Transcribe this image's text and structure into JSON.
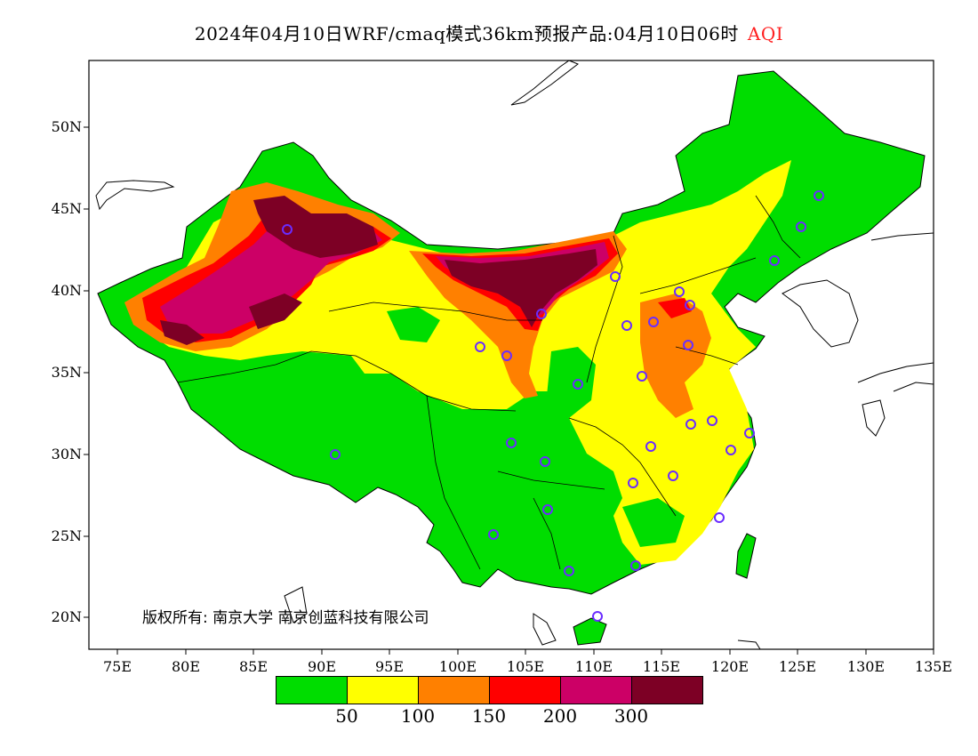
{
  "title": {
    "main": "2024年04月10日WRF/cmaq模式36km预报产品:04月10日06时",
    "variable": "AQI"
  },
  "axes": {
    "lat_labels": [
      "50N",
      "45N",
      "40N",
      "35N",
      "30N",
      "25N",
      "20N"
    ],
    "lon_labels": [
      "75E",
      "80E",
      "85E",
      "90E",
      "95E",
      "100E",
      "105E",
      "110E",
      "115E",
      "120E",
      "125E",
      "130E",
      "135E"
    ]
  },
  "copyright": "版权所有: 南京大学  南京创蓝科技有限公司",
  "legend": {
    "colors": [
      "#00dd00",
      "#ffff00",
      "#ff8000",
      "#ff0000",
      "#cc0066",
      "#7d0025"
    ],
    "ticks": [
      "50",
      "100",
      "150",
      "200",
      "300"
    ]
  },
  "colors": {
    "good": "#00dd00",
    "moderate": "#ffff00",
    "unhealthy_sensitive": "#ff8000",
    "unhealthy": "#ff0000",
    "very_unhealthy": "#cc0066",
    "hazardous": "#7d0025",
    "station_marker": "#6a2cff"
  }
}
